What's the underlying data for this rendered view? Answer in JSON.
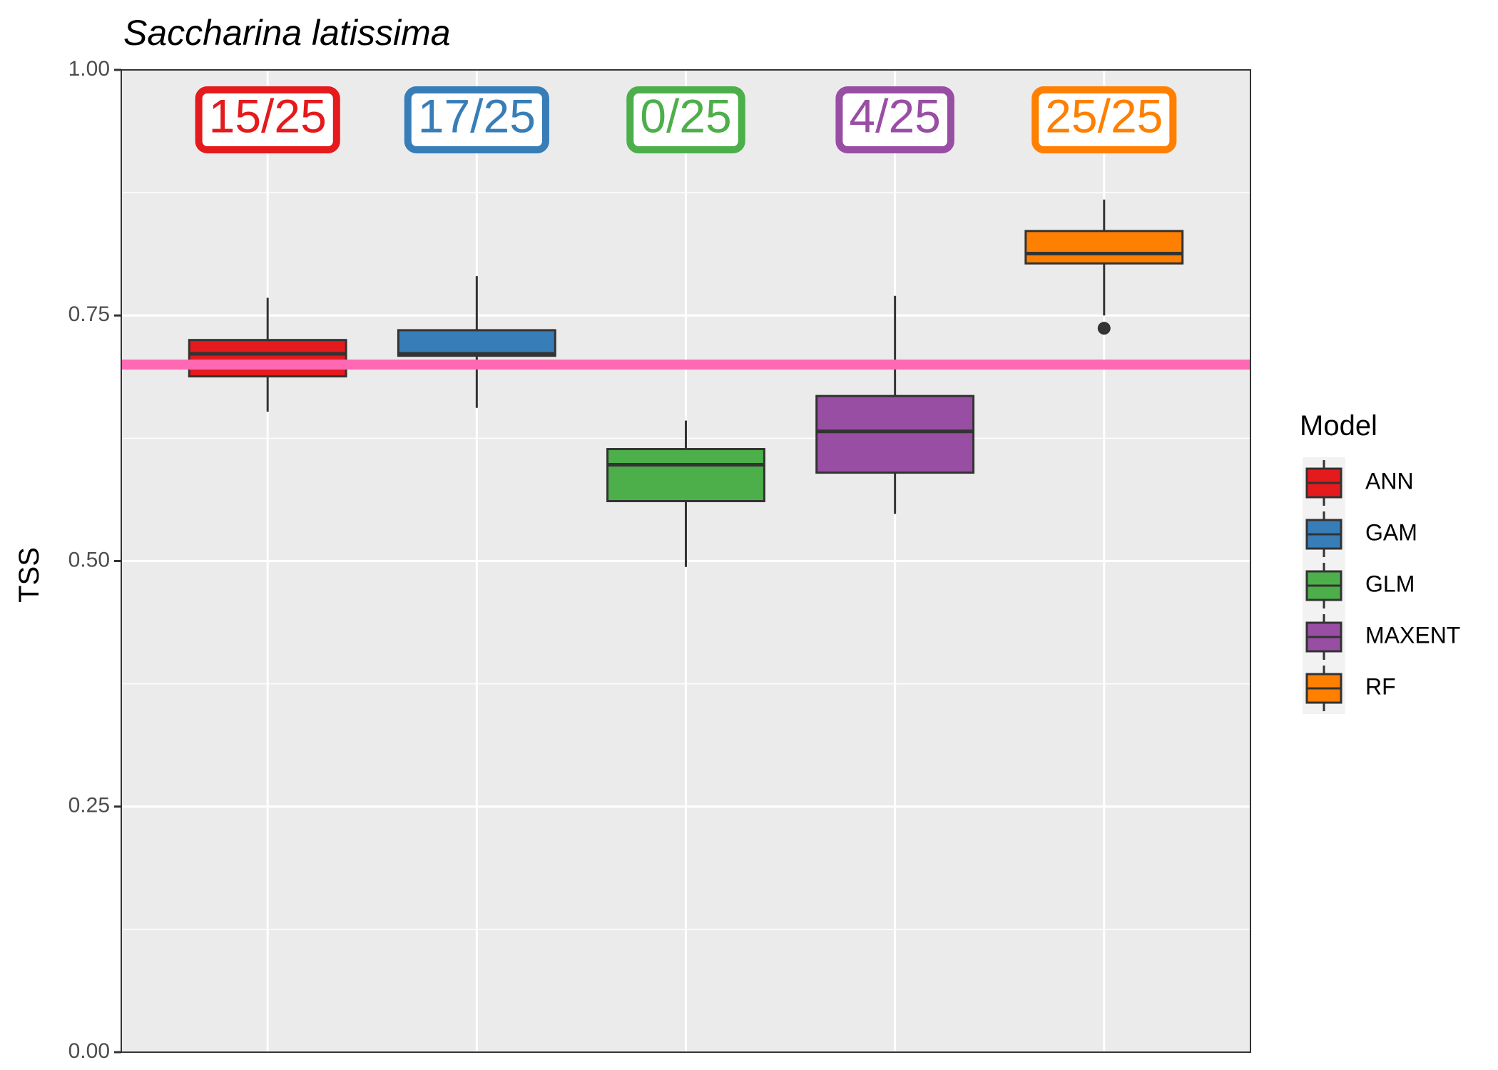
{
  "chart_data": {
    "type": "box",
    "title": "Saccharina latissima",
    "xlabel": "",
    "ylabel": "TSS",
    "ylim": [
      0,
      1
    ],
    "yticks": [
      "0.00",
      "0.25",
      "0.50",
      "0.75",
      "1.00"
    ],
    "grid": true,
    "legend": {
      "title": "Model",
      "position": "right",
      "items": [
        "ANN",
        "GAM",
        "GLM",
        "MAXENT",
        "RF"
      ]
    },
    "threshold": {
      "value": 0.7,
      "color": "#FF69B4"
    },
    "series": [
      {
        "name": "ANN",
        "color": "#E41A1C",
        "min": 0.652,
        "q1": 0.688,
        "median": 0.711,
        "q3": 0.725,
        "max": 0.768,
        "outliers": [],
        "annotation": "15/25"
      },
      {
        "name": "GAM",
        "color": "#377EB8",
        "min": 0.656,
        "q1": 0.709,
        "median": 0.711,
        "q3": 0.735,
        "max": 0.79,
        "outliers": [],
        "annotation": "17/25"
      },
      {
        "name": "GLM",
        "color": "#4DAF4A",
        "min": 0.494,
        "q1": 0.561,
        "median": 0.598,
        "q3": 0.614,
        "max": 0.643,
        "outliers": [],
        "annotation": "0/25"
      },
      {
        "name": "MAXENT",
        "color": "#984EA3",
        "min": 0.548,
        "q1": 0.59,
        "median": 0.632,
        "q3": 0.668,
        "max": 0.77,
        "outliers": [],
        "annotation": "4/25"
      },
      {
        "name": "RF",
        "color": "#FF7F00",
        "min": 0.75,
        "q1": 0.803,
        "median": 0.813,
        "q3": 0.836,
        "max": 0.868,
        "outliers": [
          0.737
        ],
        "annotation": "25/25"
      }
    ]
  }
}
